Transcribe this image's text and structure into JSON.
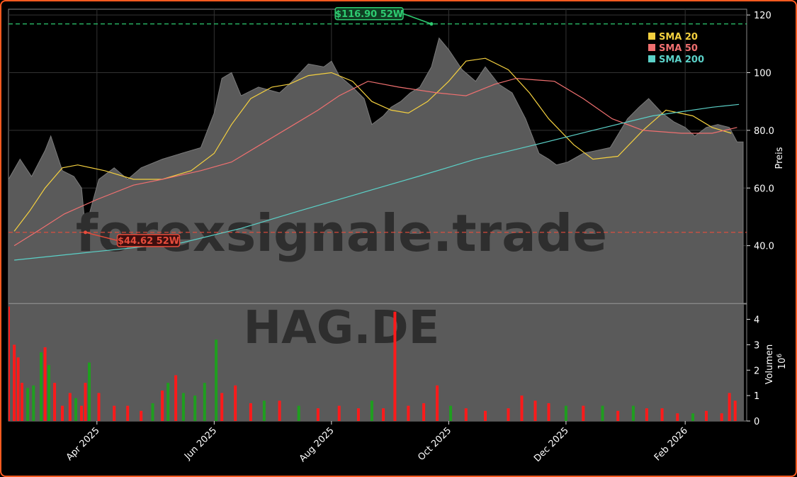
{
  "watermark": {
    "text": "forexsignale.trade",
    "symbol": "HAG.DE"
  },
  "colors": {
    "up": "#1f9e1f",
    "down": "#ff1a1a",
    "area": "#5a5a5a",
    "sma20": "#f4d03f",
    "sma50": "#f07070",
    "sma200": "#5bd1c8",
    "high_line": "#2ecc71",
    "low_line": "#e74c3c",
    "border": "#ff5a1f"
  },
  "chart_data": [
    {
      "type": "line",
      "panel": "price",
      "ylabel": "Preis",
      "ylim": [
        20,
        122
      ],
      "yticks": [
        "40.0",
        "60.0",
        "80.0",
        "100",
        "120"
      ],
      "xlim": [
        "2025-02-14",
        "2026-03-05"
      ],
      "xticks": [
        "Apr 2025",
        "Jun 2025",
        "Aug 2025",
        "Oct 2025",
        "Dec 2025",
        "Feb 2026"
      ],
      "grid": true,
      "legend_position": "top-right",
      "annotations": [
        {
          "label": "$116.90 52W",
          "value": 116.9,
          "date": "2025-09-22",
          "kind": "high"
        },
        {
          "label": "$44.62 52W",
          "value": 44.62,
          "date": "2025-03-26",
          "kind": "low"
        }
      ],
      "series": [
        {
          "name": "SMA 20",
          "points": [
            [
              "2025-02-17",
              45
            ],
            [
              "2025-02-25",
              52
            ],
            [
              "2025-03-05",
              60
            ],
            [
              "2025-03-14",
              67
            ],
            [
              "2025-03-22",
              68
            ],
            [
              "2025-04-05",
              66
            ],
            [
              "2025-04-20",
              63
            ],
            [
              "2025-05-05",
              63
            ],
            [
              "2025-05-20",
              66
            ],
            [
              "2025-06-01",
              72
            ],
            [
              "2025-06-10",
              82
            ],
            [
              "2025-06-20",
              91
            ],
            [
              "2025-07-01",
              95
            ],
            [
              "2025-07-10",
              96
            ],
            [
              "2025-07-20",
              99
            ],
            [
              "2025-08-01",
              100
            ],
            [
              "2025-08-12",
              97
            ],
            [
              "2025-08-22",
              90
            ],
            [
              "2025-09-01",
              87
            ],
            [
              "2025-09-10",
              86
            ],
            [
              "2025-09-20",
              90
            ],
            [
              "2025-10-01",
              97
            ],
            [
              "2025-10-10",
              104
            ],
            [
              "2025-10-20",
              105
            ],
            [
              "2025-11-01",
              101
            ],
            [
              "2025-11-12",
              93
            ],
            [
              "2025-11-22",
              84
            ],
            [
              "2025-12-05",
              75
            ],
            [
              "2025-12-15",
              70
            ],
            [
              "2025-12-28",
              71
            ],
            [
              "2026-01-10",
              80
            ],
            [
              "2026-01-22",
              87
            ],
            [
              "2026-02-05",
              85
            ],
            [
              "2026-02-15",
              81
            ],
            [
              "2026-02-25",
              79
            ]
          ]
        },
        {
          "name": "SMA 50",
          "points": [
            [
              "2025-02-17",
              40
            ],
            [
              "2025-03-01",
              45
            ],
            [
              "2025-03-15",
              51
            ],
            [
              "2025-04-01",
              56
            ],
            [
              "2025-04-20",
              61
            ],
            [
              "2025-05-05",
              63
            ],
            [
              "2025-05-25",
              66
            ],
            [
              "2025-06-10",
              69
            ],
            [
              "2025-06-25",
              75
            ],
            [
              "2025-07-10",
              81
            ],
            [
              "2025-07-25",
              87
            ],
            [
              "2025-08-05",
              92
            ],
            [
              "2025-08-20",
              97
            ],
            [
              "2025-09-05",
              95
            ],
            [
              "2025-09-25",
              93
            ],
            [
              "2025-10-10",
              92
            ],
            [
              "2025-10-25",
              96
            ],
            [
              "2025-11-05",
              98
            ],
            [
              "2025-11-25",
              97
            ],
            [
              "2025-12-10",
              91
            ],
            [
              "2025-12-25",
              84
            ],
            [
              "2026-01-10",
              80
            ],
            [
              "2026-01-30",
              79
            ],
            [
              "2026-02-15",
              79
            ],
            [
              "2026-02-28",
              81
            ]
          ]
        },
        {
          "name": "SMA 200",
          "points": [
            [
              "2025-02-17",
              35
            ],
            [
              "2025-04-01",
              38
            ],
            [
              "2025-05-15",
              41
            ],
            [
              "2025-06-15",
              46
            ],
            [
              "2025-07-15",
              52
            ],
            [
              "2025-08-15",
              58
            ],
            [
              "2025-09-15",
              64
            ],
            [
              "2025-10-15",
              70
            ],
            [
              "2025-11-15",
              75
            ],
            [
              "2025-12-15",
              80
            ],
            [
              "2026-01-15",
              85
            ],
            [
              "2026-02-15",
              88
            ],
            [
              "2026-03-01",
              89
            ]
          ]
        }
      ],
      "close": [
        [
          "2025-02-14",
          63
        ],
        [
          "2025-02-20",
          70
        ],
        [
          "2025-02-26",
          64
        ],
        [
          "2025-03-05",
          73
        ],
        [
          "2025-03-08",
          78
        ],
        [
          "2025-03-14",
          66
        ],
        [
          "2025-03-20",
          64
        ],
        [
          "2025-03-24",
          60
        ],
        [
          "2025-03-26",
          46
        ],
        [
          "2025-04-02",
          63
        ],
        [
          "2025-04-10",
          67
        ],
        [
          "2025-04-17",
          63
        ],
        [
          "2025-04-24",
          67
        ],
        [
          "2025-05-05",
          70
        ],
        [
          "2025-05-15",
          72
        ],
        [
          "2025-05-25",
          74
        ],
        [
          "2025-06-01",
          86
        ],
        [
          "2025-06-05",
          98
        ],
        [
          "2025-06-10",
          100
        ],
        [
          "2025-06-15",
          92
        ],
        [
          "2025-06-24",
          95
        ],
        [
          "2025-07-05",
          93
        ],
        [
          "2025-07-10",
          96
        ],
        [
          "2025-07-20",
          103
        ],
        [
          "2025-07-28",
          102
        ],
        [
          "2025-08-01",
          104
        ],
        [
          "2025-08-05",
          99
        ],
        [
          "2025-08-12",
          95
        ],
        [
          "2025-08-18",
          91
        ],
        [
          "2025-08-22",
          82
        ],
        [
          "2025-08-28",
          85
        ],
        [
          "2025-09-01",
          88
        ],
        [
          "2025-09-06",
          90
        ],
        [
          "2025-09-11",
          93
        ],
        [
          "2025-09-16",
          95
        ],
        [
          "2025-09-22",
          102
        ],
        [
          "2025-09-26",
          112
        ],
        [
          "2025-10-01",
          108
        ],
        [
          "2025-10-08",
          101
        ],
        [
          "2025-10-15",
          97
        ],
        [
          "2025-10-20",
          102
        ],
        [
          "2025-10-27",
          96
        ],
        [
          "2025-11-03",
          93
        ],
        [
          "2025-11-10",
          84
        ],
        [
          "2025-11-17",
          72
        ],
        [
          "2025-11-22",
          70
        ],
        [
          "2025-11-26",
          68
        ],
        [
          "2025-12-02",
          69
        ],
        [
          "2025-12-10",
          72
        ],
        [
          "2025-12-17",
          73
        ],
        [
          "2025-12-24",
          74
        ],
        [
          "2026-01-02",
          84
        ],
        [
          "2026-01-08",
          88
        ],
        [
          "2026-01-13",
          91
        ],
        [
          "2026-01-20",
          86
        ],
        [
          "2026-01-26",
          83
        ],
        [
          "2026-02-01",
          81
        ],
        [
          "2026-02-06",
          78
        ],
        [
          "2026-02-12",
          81
        ],
        [
          "2026-02-18",
          82
        ],
        [
          "2026-02-24",
          81
        ],
        [
          "2026-02-28",
          76
        ]
      ]
    },
    {
      "type": "bar",
      "panel": "volume",
      "ylabel": "Volumen",
      "yunit": "10^6",
      "ylim": [
        0,
        4.6
      ],
      "yticks": [
        "0",
        "1",
        "2",
        "3",
        "4"
      ],
      "bars": [
        [
          "2025-02-14",
          4.5,
          "down"
        ],
        [
          "2025-02-17",
          3.0,
          "down"
        ],
        [
          "2025-02-19",
          2.5,
          "down"
        ],
        [
          "2025-02-21",
          1.5,
          "down"
        ],
        [
          "2025-02-24",
          1.3,
          "up"
        ],
        [
          "2025-02-27",
          1.4,
          "up"
        ],
        [
          "2025-03-03",
          2.7,
          "up"
        ],
        [
          "2025-03-05",
          2.9,
          "down"
        ],
        [
          "2025-03-07",
          2.2,
          "up"
        ],
        [
          "2025-03-10",
          1.5,
          "down"
        ],
        [
          "2025-03-14",
          0.6,
          "down"
        ],
        [
          "2025-03-18",
          1.1,
          "down"
        ],
        [
          "2025-03-21",
          0.9,
          "up"
        ],
        [
          "2025-03-24",
          0.6,
          "down"
        ],
        [
          "2025-03-26",
          1.5,
          "down"
        ],
        [
          "2025-03-28",
          2.3,
          "up"
        ],
        [
          "2025-04-02",
          1.1,
          "down"
        ],
        [
          "2025-04-10",
          0.6,
          "down"
        ],
        [
          "2025-04-17",
          0.6,
          "down"
        ],
        [
          "2025-04-24",
          0.4,
          "down"
        ],
        [
          "2025-04-30",
          0.7,
          "up"
        ],
        [
          "2025-05-05",
          1.2,
          "down"
        ],
        [
          "2025-05-08",
          1.5,
          "up"
        ],
        [
          "2025-05-12",
          1.8,
          "down"
        ],
        [
          "2025-05-16",
          1.1,
          "up"
        ],
        [
          "2025-05-22",
          1.0,
          "up"
        ],
        [
          "2025-05-27",
          1.5,
          "up"
        ],
        [
          "2025-06-02",
          3.2,
          "up"
        ],
        [
          "2025-06-05",
          1.1,
          "down"
        ],
        [
          "2025-06-12",
          1.4,
          "down"
        ],
        [
          "2025-06-20",
          0.7,
          "down"
        ],
        [
          "2025-06-27",
          0.8,
          "up"
        ],
        [
          "2025-07-05",
          0.8,
          "down"
        ],
        [
          "2025-07-15",
          0.6,
          "up"
        ],
        [
          "2025-07-25",
          0.5,
          "down"
        ],
        [
          "2025-08-05",
          0.6,
          "down"
        ],
        [
          "2025-08-15",
          0.5,
          "down"
        ],
        [
          "2025-08-22",
          0.8,
          "up"
        ],
        [
          "2025-08-28",
          0.5,
          "down"
        ],
        [
          "2025-09-03",
          4.3,
          "down"
        ],
        [
          "2025-09-10",
          0.6,
          "down"
        ],
        [
          "2025-09-18",
          0.7,
          "down"
        ],
        [
          "2025-09-25",
          1.4,
          "down"
        ],
        [
          "2025-10-02",
          0.6,
          "up"
        ],
        [
          "2025-10-10",
          0.5,
          "down"
        ],
        [
          "2025-10-20",
          0.4,
          "down"
        ],
        [
          "2025-11-01",
          0.5,
          "down"
        ],
        [
          "2025-11-08",
          1.0,
          "down"
        ],
        [
          "2025-11-15",
          0.8,
          "down"
        ],
        [
          "2025-11-22",
          0.7,
          "down"
        ],
        [
          "2025-12-01",
          0.6,
          "up"
        ],
        [
          "2025-12-10",
          0.6,
          "down"
        ],
        [
          "2025-12-20",
          0.6,
          "up"
        ],
        [
          "2025-12-28",
          0.4,
          "down"
        ],
        [
          "2026-01-05",
          0.6,
          "up"
        ],
        [
          "2026-01-12",
          0.5,
          "down"
        ],
        [
          "2026-01-20",
          0.5,
          "down"
        ],
        [
          "2026-01-28",
          0.3,
          "down"
        ],
        [
          "2026-02-05",
          0.3,
          "up"
        ],
        [
          "2026-02-12",
          0.4,
          "down"
        ],
        [
          "2026-02-20",
          0.3,
          "down"
        ],
        [
          "2026-02-24",
          1.1,
          "down"
        ],
        [
          "2026-02-27",
          0.8,
          "down"
        ]
      ]
    }
  ]
}
